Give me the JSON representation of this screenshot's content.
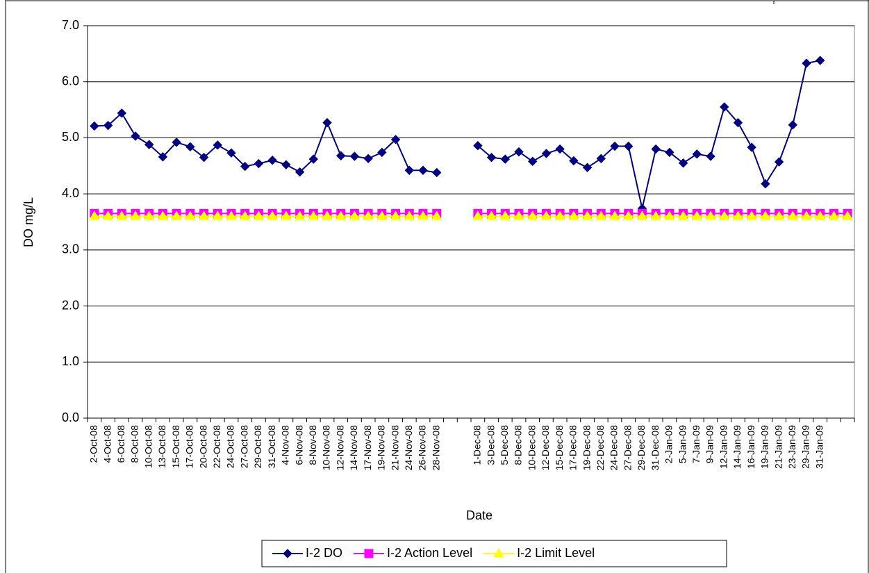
{
  "chart_data": {
    "type": "line",
    "x_label": "Date",
    "y_label": "DO mg/L",
    "categories": [
      "2-Oct-08",
      "4-Oct-08",
      "6-Oct-08",
      "8-Oct-08",
      "10-Oct-08",
      "13-Oct-08",
      "15-Oct-08",
      "17-Oct-08",
      "20-Oct-08",
      "22-Oct-08",
      "24-Oct-08",
      "27-Oct-08",
      "29-Oct-08",
      "31-Oct-08",
      "4-Nov-08",
      "6-Nov-08",
      "8-Nov-08",
      "10-Nov-08",
      "12-Nov-08",
      "14-Nov-08",
      "17-Nov-08",
      "19-Nov-08",
      "21-Nov-08",
      "24-Nov-08",
      "26-Nov-08",
      "28-Nov-08",
      null,
      null,
      "1-Dec-08",
      "3-Dec-08",
      "5-Dec-08",
      "8-Dec-08",
      "10-Dec-08",
      "12-Dec-08",
      "15-Dec-08",
      "17-Dec-08",
      "19-Dec-08",
      "22-Dec-08",
      "24-Dec-08",
      "27-Dec-08",
      "29-Dec-08",
      "31-Dec-08",
      "2-Jan-09",
      "5-Jan-09",
      "7-Jan-09",
      "9-Jan-09",
      "12-Jan-09",
      "14-Jan-09",
      "16-Jan-09",
      "19-Jan-09",
      "21-Jan-09",
      "23-Jan-09",
      "29-Jan-09",
      "31-Jan-09",
      null,
      null
    ],
    "series": [
      {
        "name": "I-2 DO",
        "color": "#000080",
        "marker": "diamond",
        "values": [
          5.21,
          5.22,
          5.44,
          5.03,
          4.88,
          4.66,
          4.92,
          4.84,
          4.65,
          4.87,
          4.73,
          4.49,
          4.54,
          4.6,
          4.52,
          4.39,
          4.62,
          5.27,
          4.68,
          4.67,
          4.63,
          4.74,
          4.97,
          4.42,
          4.42,
          4.38,
          null,
          null,
          4.86,
          4.65,
          4.62,
          4.75,
          4.58,
          4.72,
          4.8,
          4.59,
          4.47,
          4.63,
          4.85,
          4.85,
          3.74,
          4.8,
          4.74,
          4.55,
          4.71,
          4.67,
          5.55,
          5.27,
          4.83,
          4.18,
          4.57,
          5.23,
          6.33,
          6.38,
          null,
          null
        ]
      },
      {
        "name": "I-2 Action Level",
        "color": "#ff00ff",
        "marker": "square",
        "values": [
          3.65,
          3.65,
          3.65,
          3.65,
          3.65,
          3.65,
          3.65,
          3.65,
          3.65,
          3.65,
          3.65,
          3.65,
          3.65,
          3.65,
          3.65,
          3.65,
          3.65,
          3.65,
          3.65,
          3.65,
          3.65,
          3.65,
          3.65,
          3.65,
          3.65,
          3.65,
          null,
          null,
          3.65,
          3.65,
          3.65,
          3.65,
          3.65,
          3.65,
          3.65,
          3.65,
          3.65,
          3.65,
          3.65,
          3.65,
          3.65,
          3.65,
          3.65,
          3.65,
          3.65,
          3.65,
          3.65,
          3.65,
          3.65,
          3.65,
          3.65,
          3.65,
          3.65,
          3.65,
          3.65,
          3.65
        ]
      },
      {
        "name": "I-2 Limit Level",
        "color": "#ffff00",
        "marker": "triangle",
        "values": [
          3.6,
          3.6,
          3.6,
          3.6,
          3.6,
          3.6,
          3.6,
          3.6,
          3.6,
          3.6,
          3.6,
          3.6,
          3.6,
          3.6,
          3.6,
          3.6,
          3.6,
          3.6,
          3.6,
          3.6,
          3.6,
          3.6,
          3.6,
          3.6,
          3.6,
          3.6,
          null,
          null,
          3.6,
          3.6,
          3.6,
          3.6,
          3.6,
          3.6,
          3.6,
          3.6,
          3.6,
          3.6,
          3.6,
          3.6,
          3.6,
          3.6,
          3.6,
          3.6,
          3.6,
          3.6,
          3.6,
          3.6,
          3.6,
          3.6,
          3.6,
          3.6,
          3.6,
          3.6,
          3.6,
          3.6
        ]
      }
    ],
    "ylim": [
      0,
      7
    ],
    "yticks": [
      {
        "value": 0,
        "label": "0.0"
      },
      {
        "value": 1,
        "label": "1.0"
      },
      {
        "value": 2,
        "label": "2.0"
      },
      {
        "value": 3,
        "label": "3.0"
      },
      {
        "value": 4,
        "label": "4.0"
      },
      {
        "value": 5,
        "label": "5.0"
      },
      {
        "value": 6,
        "label": "6.0"
      },
      {
        "value": 7,
        "label": "7.0"
      }
    ],
    "grid": true,
    "legend": "bottom"
  }
}
